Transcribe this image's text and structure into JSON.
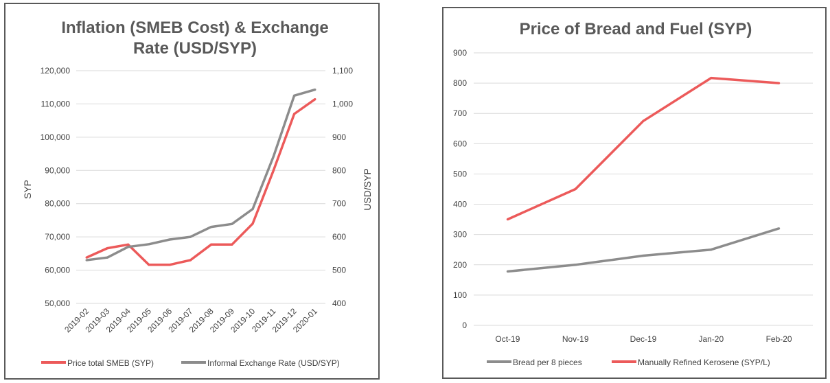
{
  "chart_data": [
    {
      "type": "line",
      "title_lines": [
        "Inflation (SMEB Cost) & Exchange",
        "Rate (USD/SYP)"
      ],
      "ylabel": "SYP",
      "y2label": "USD/SYP",
      "ylim": [
        50000,
        120000
      ],
      "y2lim": [
        400,
        1100
      ],
      "yticks": [
        "50,000",
        "60,000",
        "70,000",
        "80,000",
        "90,000",
        "100,000",
        "110,000",
        "120,000"
      ],
      "y2ticks": [
        "400",
        "500",
        "600",
        "700",
        "800",
        "900",
        "1,000",
        "1,100"
      ],
      "categories": [
        "2019-02",
        "2019-03",
        "2019-04",
        "2019-05",
        "2019-06",
        "2019-07",
        "2019-08",
        "2019-09",
        "2019-10",
        "2019-11",
        "2019-12",
        "2020-01"
      ],
      "series": [
        {
          "name": "Price total SMEB (SYP)",
          "axis": "left",
          "color": "#ec5a5a",
          "values": [
            63800,
            66600,
            67700,
            61600,
            61600,
            63000,
            67700,
            67700,
            74000,
            90000,
            107000,
            111400
          ]
        },
        {
          "name": "Informal Exchange Rate (USD/SYP)",
          "axis": "right",
          "color": "#8c8c8c",
          "values": [
            530,
            538,
            570,
            578,
            592,
            600,
            630,
            639,
            684,
            842,
            1025,
            1043
          ]
        }
      ],
      "grid": true,
      "legend": "bottom"
    },
    {
      "type": "line",
      "title": "Price of Bread and Fuel (SYP)",
      "ylim": [
        0,
        900
      ],
      "yticks": [
        "0",
        "100",
        "200",
        "300",
        "400",
        "500",
        "600",
        "700",
        "800",
        "900"
      ],
      "categories": [
        "Oct-19",
        "Nov-19",
        "Dec-19",
        "Jan-20",
        "Feb-20"
      ],
      "series": [
        {
          "name": "Bread per 8 pieces",
          "color": "#8c8c8c",
          "values": [
            178,
            200,
            230,
            250,
            320
          ]
        },
        {
          "name": "Manually Refined Kerosene  (SYP/L)",
          "color": "#ec5a5a",
          "values": [
            350,
            450,
            675,
            817,
            800
          ]
        }
      ],
      "grid": true,
      "legend": "bottom"
    }
  ]
}
